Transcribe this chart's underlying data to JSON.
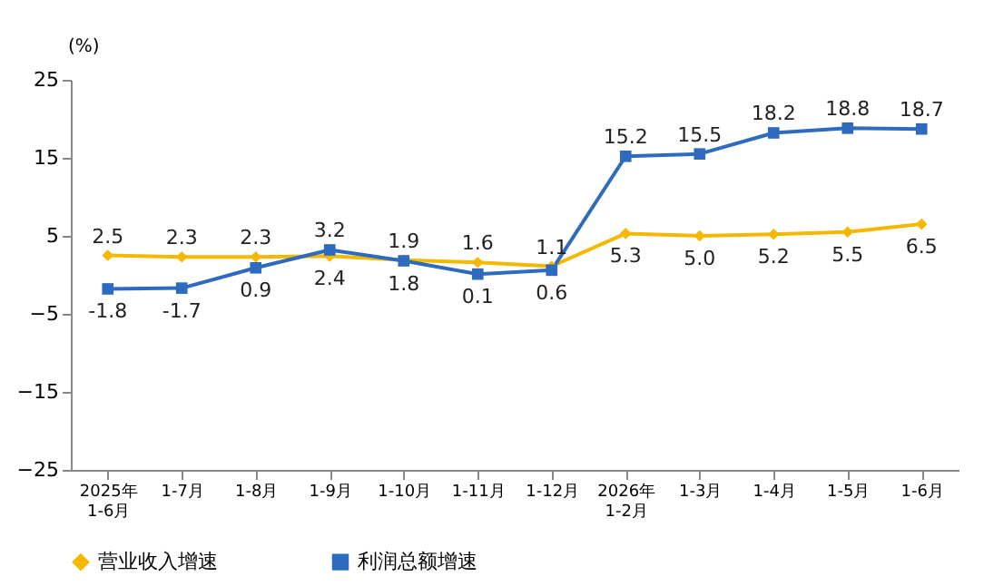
{
  "chart_data": {
    "type": "line",
    "ylabel": "(%)",
    "categories": [
      "2025年\n1-6月",
      "1-7月",
      "1-8月",
      "1-9月",
      "1-10月",
      "1-11月",
      "1-12月",
      "2026年\n1-2月",
      "1-3月",
      "1-4月",
      "1-5月",
      "1-6月"
    ],
    "series": [
      {
        "name": "营业收入增速",
        "color": "#f5b800",
        "marker": "diamond",
        "values": [
          2.5,
          2.3,
          2.3,
          2.4,
          1.9,
          1.6,
          1.1,
          5.3,
          5.0,
          5.2,
          5.5,
          6.5
        ],
        "value_labels": [
          "2.5",
          "2.3",
          "2.3",
          "2.4",
          "1.9",
          "1.6",
          "1.1",
          "5.3",
          "5.0",
          "5.2",
          "5.5",
          "6.5"
        ]
      },
      {
        "name": "利润总额增速",
        "color": "#2e6bbf",
        "marker": "square",
        "values": [
          -1.8,
          -1.7,
          0.9,
          3.2,
          1.8,
          0.1,
          0.6,
          15.2,
          15.5,
          18.2,
          18.8,
          18.7
        ],
        "value_labels": [
          "-1.8",
          "-1.7",
          "0.9",
          "3.2",
          "1.8",
          "0.1",
          "0.6",
          "15.2",
          "15.5",
          "18.2",
          "18.8",
          "18.7"
        ]
      }
    ],
    "ylim": [
      -25,
      25
    ],
    "yticks": [
      -25,
      -15,
      -5,
      5,
      15,
      25
    ],
    "grid": false,
    "legend": "bottom",
    "line_style": "solid"
  }
}
